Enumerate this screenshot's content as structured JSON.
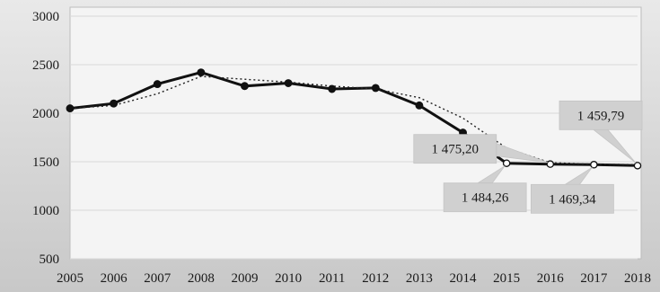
{
  "chart_data": {
    "type": "line",
    "title": "",
    "xlabel": "",
    "ylabel": "",
    "ylim": [
      500,
      3000
    ],
    "yticks": [
      "500",
      "1000",
      "1500",
      "2000",
      "2500",
      "3000"
    ],
    "categories": [
      "2005",
      "2006",
      "2007",
      "2008",
      "2009",
      "2010",
      "2011",
      "2012",
      "2013",
      "2014",
      "2015",
      "2016",
      "2017",
      "2018"
    ],
    "grid": "horizontal",
    "series": [
      {
        "style": "solid-thick-markers",
        "color": "#111111",
        "values": [
          2050,
          2100,
          2300,
          2420,
          2280,
          2310,
          2250,
          2260,
          2080,
          1800,
          1484.26,
          1475.2,
          1469.34,
          1459.79
        ]
      },
      {
        "style": "dotted",
        "color": "#222222",
        "values": [
          2050,
          2080,
          2200,
          2380,
          2350,
          2320,
          2280,
          2250,
          2160,
          1950,
          1640,
          1490,
          1475,
          1470
        ]
      }
    ],
    "annotations": [
      {
        "text": "1 475,20",
        "point_index": 11,
        "callout": "left"
      },
      {
        "text": "1 484,26",
        "point_index": 10,
        "callout": "below"
      },
      {
        "text": "1 469,34",
        "point_index": 12,
        "callout": "below"
      },
      {
        "text": "1 459,79",
        "point_index": 13,
        "callout": "above"
      }
    ]
  }
}
